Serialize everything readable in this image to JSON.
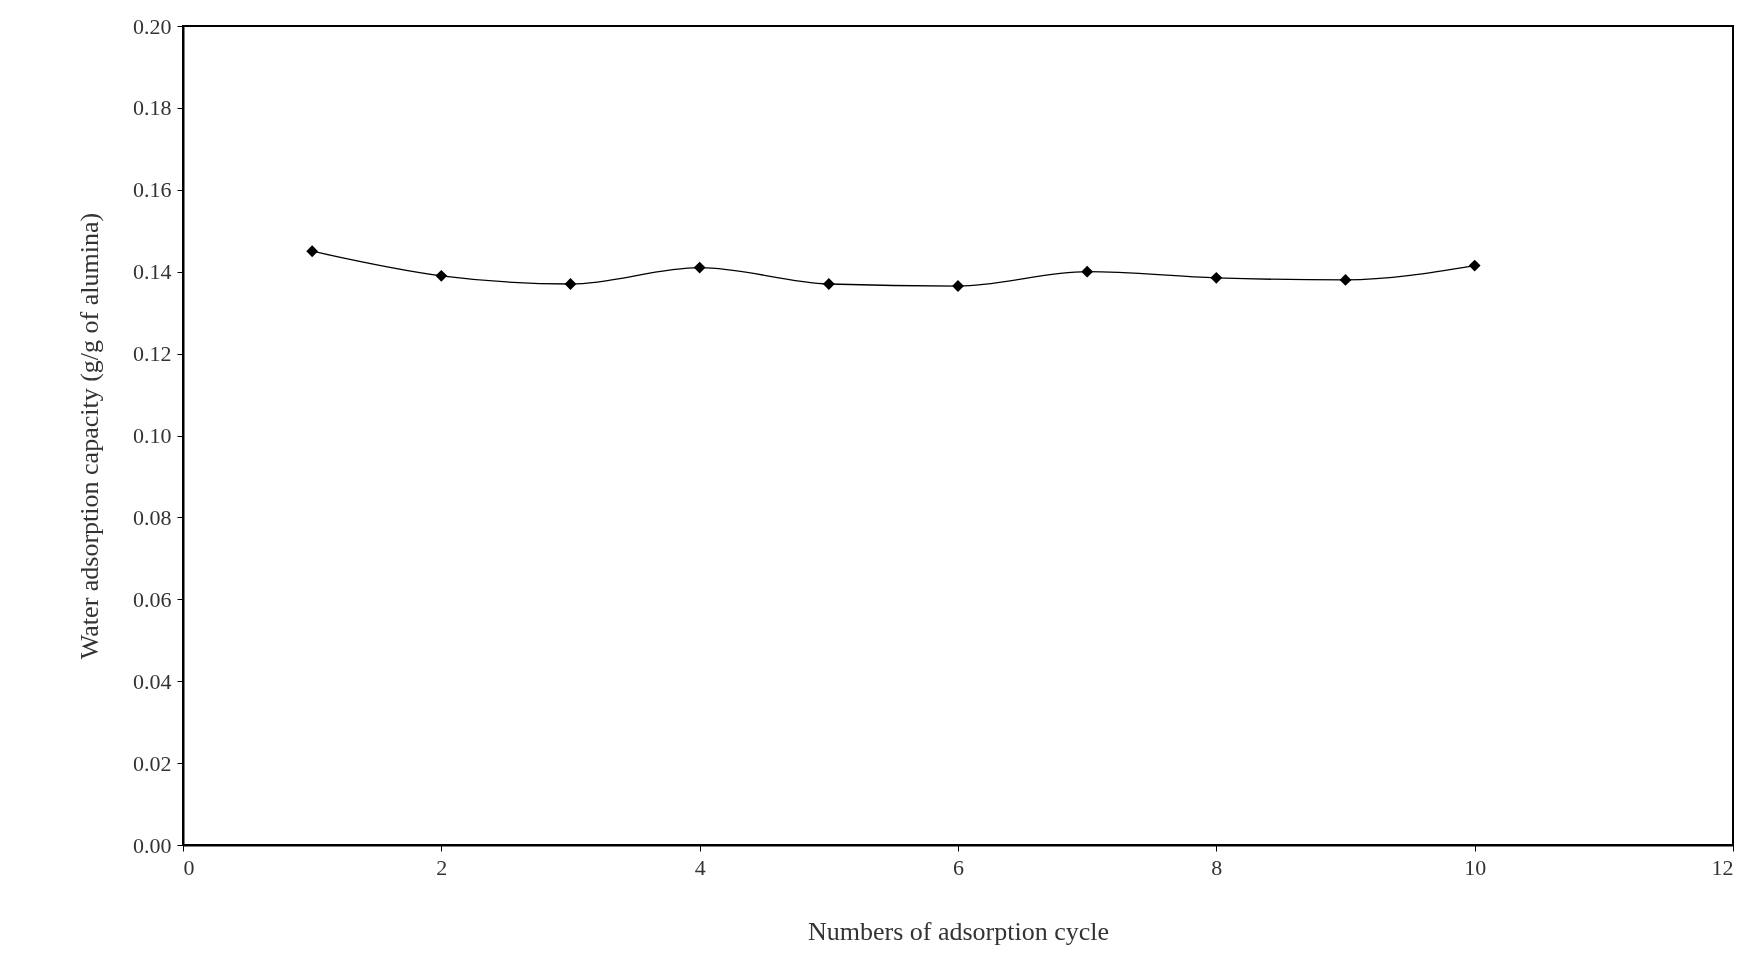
{
  "chart_data": {
    "type": "line",
    "xlabel": "Numbers of adsorption cycle",
    "ylabel": "Water adsorption capacity (g/g of alumina)",
    "x": [
      1,
      2,
      3,
      4,
      5,
      6,
      7,
      8,
      9,
      10
    ],
    "series": [
      {
        "color": "#000000",
        "values": [
          0.145,
          0.139,
          0.137,
          0.141,
          0.137,
          0.1365,
          0.14,
          0.1385,
          0.138,
          0.1415
        ]
      }
    ],
    "xlim": [
      0,
      12
    ],
    "xticks": [
      0,
      2,
      4,
      6,
      8,
      10,
      12
    ],
    "ylim": [
      0,
      0.2
    ],
    "yticks": [
      {
        "value": 0,
        "label": "0.00"
      },
      {
        "value": 0.02,
        "label": "0.02"
      },
      {
        "value": 0.04,
        "label": "0.04"
      },
      {
        "value": 0.06,
        "label": "0.06"
      },
      {
        "value": 0.08,
        "label": "0.08"
      },
      {
        "value": 0.1,
        "label": "0.10"
      },
      {
        "value": 0.12,
        "label": "0.12"
      },
      {
        "value": 0.14,
        "label": "0.14"
      },
      {
        "value": 0.16,
        "label": "0.16"
      },
      {
        "value": 0.18,
        "label": "0.18"
      },
      {
        "value": 0.2,
        "label": "0.20"
      }
    ],
    "grid": false,
    "marker": "diamond",
    "line_style": "solid"
  }
}
